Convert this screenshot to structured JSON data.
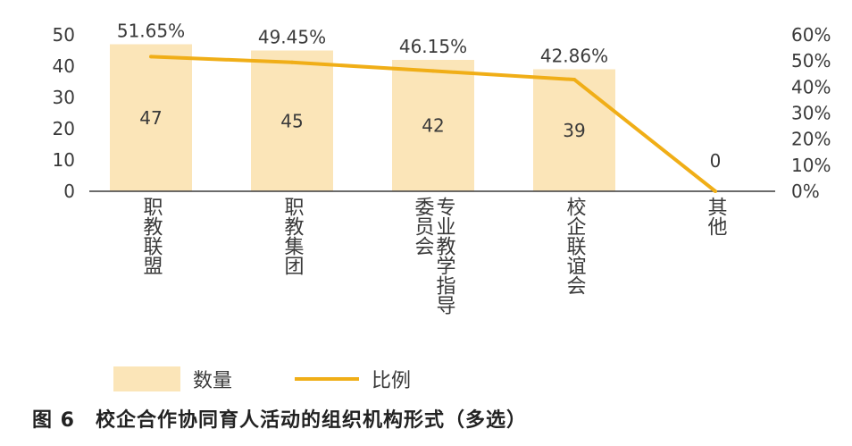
{
  "chart_data": {
    "type": "bar",
    "categories": [
      "职教联盟",
      "职教集团",
      "专业教学指导委员会",
      "校企联谊会",
      "其他"
    ],
    "category_label_lines": [
      [
        "职教联盟"
      ],
      [
        "职教集团"
      ],
      [
        "专业教学指导",
        "委员会"
      ],
      [
        "校企联谊会"
      ],
      [
        "其他"
      ]
    ],
    "series": [
      {
        "name": "数量",
        "type": "bar",
        "values": [
          47,
          45,
          42,
          39,
          0
        ],
        "axis": "left"
      },
      {
        "name": "比例",
        "type": "line",
        "values": [
          51.65,
          49.45,
          46.15,
          42.86,
          0
        ],
        "axis": "right"
      }
    ],
    "bar_labels": [
      "47",
      "45",
      "42",
      "39",
      "0"
    ],
    "line_labels": [
      "51.65%",
      "49.45%",
      "46.15%",
      "42.86%"
    ],
    "ylim": [
      0,
      50
    ],
    "yticks": [
      0,
      10,
      20,
      30,
      40,
      50
    ],
    "y2lim": [
      0,
      60
    ],
    "y2ticks": [
      "0%",
      "10%",
      "20%",
      "30%",
      "40%",
      "50%",
      "60%"
    ],
    "legend_position": "bottom-left",
    "grid": false,
    "colors": {
      "bar": "#fbe5b8",
      "line": "#f0ae17"
    }
  },
  "legend": {
    "bar_label": "数量",
    "line_label": "比例"
  },
  "caption": "图 6　校企合作协同育人活动的组织机构形式（多选）"
}
